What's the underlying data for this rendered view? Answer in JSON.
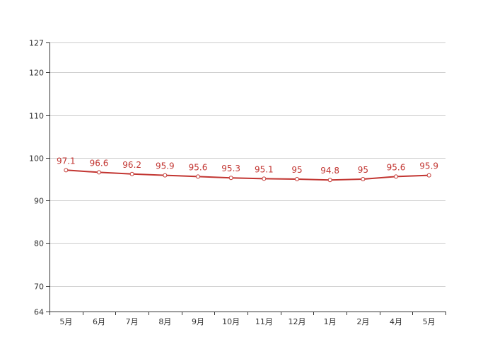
{
  "chart_data": {
    "type": "line",
    "categories": [
      "5月",
      "6月",
      "7月",
      "8月",
      "9月",
      "10月",
      "11月",
      "12月",
      "1月",
      "2月",
      "4月",
      "5月"
    ],
    "series": [
      {
        "values": [
          97.1,
          96.6,
          96.2,
          95.9,
          95.6,
          95.3,
          95.1,
          95,
          94.8,
          95,
          95.6,
          95.9
        ]
      }
    ],
    "value_labels": [
      "97.1",
      "96.6",
      "96.2",
      "95.9",
      "95.6",
      "95.3",
      "95.1",
      "95",
      "94.8",
      "95",
      "95.6",
      "95.9"
    ],
    "ylim": [
      64,
      127
    ],
    "y_ticks": [
      64,
      70,
      80,
      90,
      100,
      110,
      120,
      127
    ],
    "y_tick_labels": [
      "64",
      "70",
      "80",
      "90",
      "100",
      "110",
      "120",
      "127"
    ],
    "grid": true,
    "legend": "none",
    "colors": {
      "line": "#c23531",
      "label": "#c23531",
      "grid": "#cccccc",
      "axis": "#333333",
      "marker_fill": "#ffffff"
    }
  }
}
